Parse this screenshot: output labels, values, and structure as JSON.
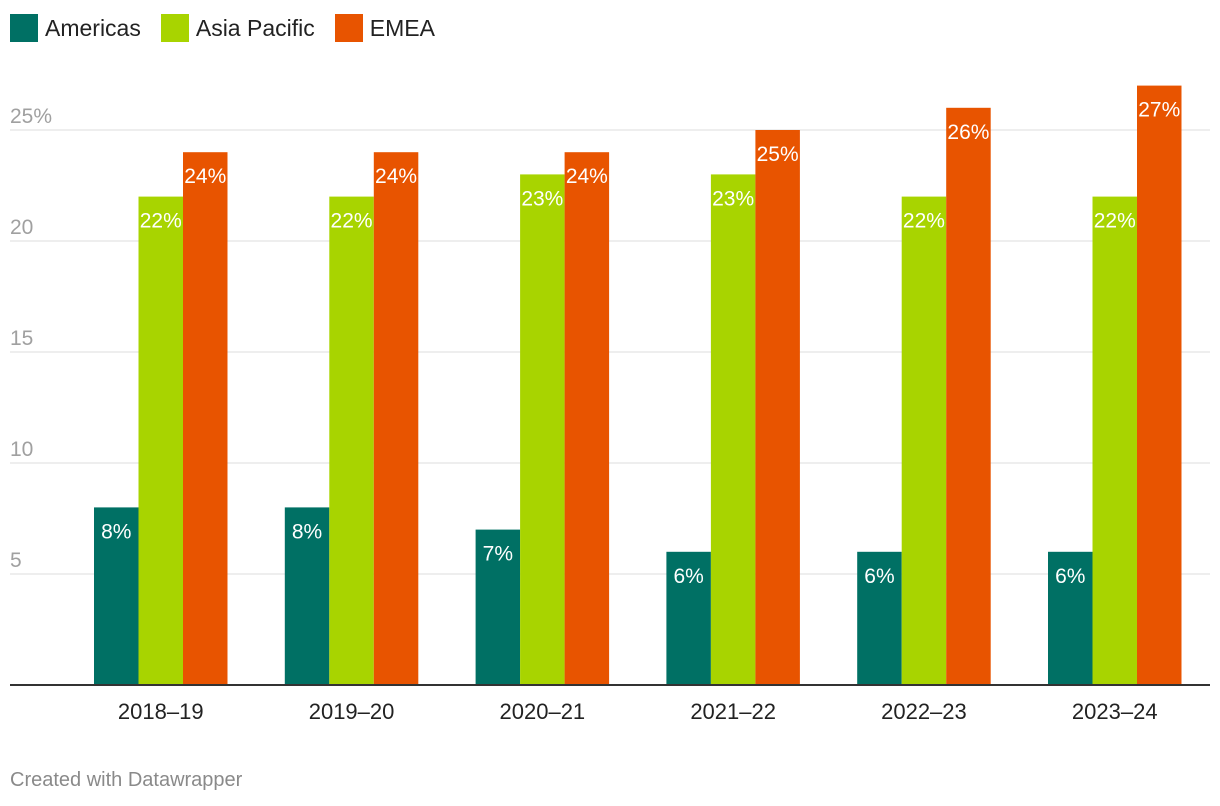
{
  "chart_data": {
    "type": "bar",
    "categories": [
      "2018–19",
      "2019–20",
      "2020–21",
      "2021–22",
      "2022–23",
      "2023–24"
    ],
    "series": [
      {
        "name": "Americas",
        "color": "#007064",
        "values": [
          8,
          8,
          7,
          6,
          6,
          6
        ],
        "labels": [
          "8%",
          "8%",
          "7%",
          "6%",
          "6%",
          "6%"
        ]
      },
      {
        "name": "Asia Pacific",
        "color": "#a8d400",
        "values": [
          22,
          22,
          23,
          23,
          22,
          22
        ],
        "labels": [
          "22%",
          "22%",
          "23%",
          "23%",
          "22%",
          "22%"
        ]
      },
      {
        "name": "EMEA",
        "color": "#e85400",
        "values": [
          24,
          24,
          24,
          25,
          26,
          27
        ],
        "labels": [
          "24%",
          "24%",
          "24%",
          "25%",
          "26%",
          "27%"
        ]
      }
    ],
    "yticks": [
      {
        "value": 5,
        "label": "5"
      },
      {
        "value": 10,
        "label": "10"
      },
      {
        "value": 15,
        "label": "15"
      },
      {
        "value": 20,
        "label": "20"
      },
      {
        "value": 25,
        "label": "25%"
      }
    ],
    "ylim": [
      0,
      27
    ],
    "title": "",
    "xlabel": "",
    "ylabel": "",
    "legend_position": "top-left",
    "grid": true
  },
  "footer": {
    "credit": "Created with Datawrapper"
  }
}
